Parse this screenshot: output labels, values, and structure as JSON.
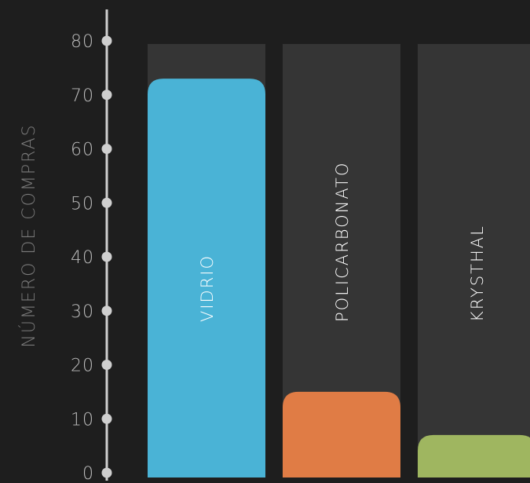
{
  "chart_data": {
    "type": "bar",
    "orientation": "vertical",
    "title": "",
    "xlabel": "",
    "ylabel": "NÚMERO DE COMPRAS",
    "ylim": [
      0,
      80
    ],
    "yticks": [
      0,
      10,
      20,
      30,
      40,
      50,
      60,
      70,
      80
    ],
    "categories": [
      "VIDRIO",
      "POLICARBONATO",
      "KRYSTHAL"
    ],
    "values": [
      73,
      15,
      7
    ],
    "bar_background_max": 80,
    "grid": false,
    "legend": "none",
    "colors": {
      "background": "#1e1e1e",
      "track": "#353535",
      "axis": "#cfcfcf",
      "tick_text": "#bdbdbd",
      "axis_title": "#7b7b7b",
      "bar_label_text": "#ffffff",
      "bars": [
        "#4ab3d6",
        "#e07c45",
        "#9fb660"
      ]
    }
  }
}
